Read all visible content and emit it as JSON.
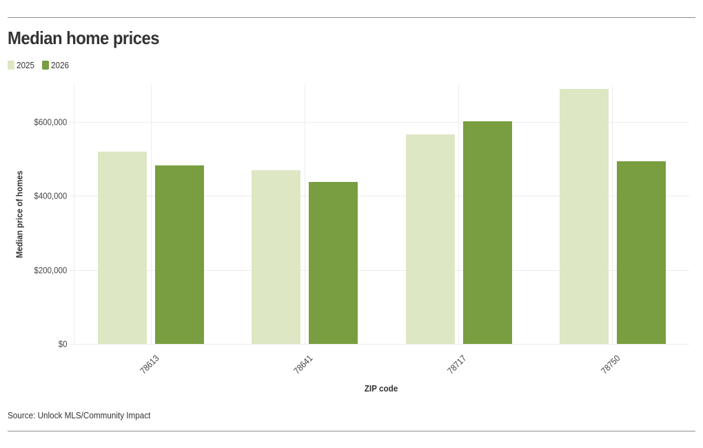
{
  "title": "Median home prices",
  "legend": [
    {
      "label": "2025",
      "color": "#dde7c4"
    },
    {
      "label": "2026",
      "color": "#789e40"
    }
  ],
  "axes": {
    "y_title": "Median price of homes",
    "x_title": "ZIP code",
    "y_ticks": [
      "$0",
      "$200,000",
      "$400,000",
      "$600,000"
    ]
  },
  "source": "Source: Unlock MLS/Community Impact",
  "chart_data": {
    "type": "bar",
    "title": "Median home prices",
    "xlabel": "ZIP code",
    "ylabel": "Median price of homes",
    "categories": [
      "78613",
      "78641",
      "78717",
      "78750"
    ],
    "series": [
      {
        "name": "2025",
        "color": "#dde7c4",
        "values": [
          520000,
          469500,
          566500,
          689000
        ]
      },
      {
        "name": "2026",
        "color": "#789e40",
        "values": [
          482500,
          438500,
          602000,
          494000
        ]
      }
    ],
    "ylim": [
      0,
      700000
    ],
    "y_ticks": [
      0,
      200000,
      400000,
      600000
    ],
    "grid": true,
    "legend_position": "top-left"
  }
}
